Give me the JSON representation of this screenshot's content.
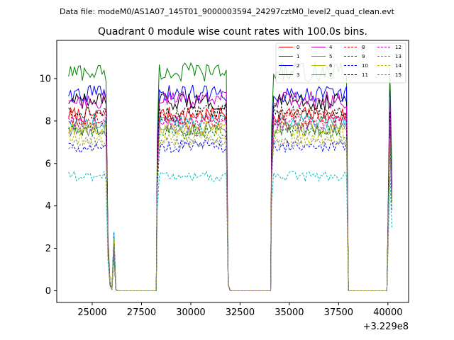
{
  "suptitle": "Data file: modeM0/AS1A07_145T01_9000003594_24297cztM0_level2_quad_clean.evt",
  "chart_data": {
    "type": "line",
    "title": "Quadrant 0 module wise count rates with 100.0s bins.",
    "xlabel": "",
    "ylabel": "",
    "x_offset_label": "+3.229e8",
    "xlim": [
      23200,
      41050
    ],
    "ylim": [
      -0.55,
      11.8
    ],
    "x_ticks": [
      25000,
      27500,
      30000,
      32500,
      35000,
      37500,
      40000
    ],
    "x_tick_labels": [
      "25000",
      "27500",
      "30000",
      "32500",
      "35000",
      "37500",
      "40000"
    ],
    "y_ticks": [
      0,
      2,
      4,
      6,
      8,
      10
    ],
    "y_tick_labels": [
      "0",
      "2",
      "4",
      "6",
      "8",
      "10"
    ],
    "legend_position": "top-right",
    "segments": [
      [
        23800,
        25700
      ],
      [
        28300,
        31800
      ],
      [
        34100,
        37900
      ],
      [
        40000,
        40200
      ]
    ],
    "series": [
      {
        "name": "0",
        "color": "#ff0000",
        "dash": "solid",
        "level": 8.3
      },
      {
        "name": "1",
        "color": "#008000",
        "dash": "solid",
        "level": 10.3
      },
      {
        "name": "2",
        "color": "#0000ff",
        "dash": "solid",
        "level": 9.3
      },
      {
        "name": "3",
        "color": "#000000",
        "dash": "solid",
        "level": 8.9
      },
      {
        "name": "4",
        "color": "#cc00cc",
        "dash": "solid",
        "level": 9.0
      },
      {
        "name": "5",
        "color": "#00bfbf",
        "dash": "solid",
        "level": 8.0
      },
      {
        "name": "6",
        "color": "#bfbf00",
        "dash": "solid",
        "level": 7.7
      },
      {
        "name": "7",
        "color": "#808080",
        "dash": "solid",
        "level": 7.6
      },
      {
        "name": "8",
        "color": "#ff0000",
        "dash": "dashed",
        "level": 8.1
      },
      {
        "name": "9",
        "color": "#008000",
        "dash": "dashed",
        "level": 7.5
      },
      {
        "name": "10",
        "color": "#0000ff",
        "dash": "dashed",
        "level": 6.8
      },
      {
        "name": "11",
        "color": "#000000",
        "dash": "dashed",
        "level": 8.4
      },
      {
        "name": "12",
        "color": "#cc00cc",
        "dash": "dashed",
        "level": 7.9
      },
      {
        "name": "13",
        "color": "#00bfbf",
        "dash": "dashed",
        "level": 5.4
      },
      {
        "name": "14",
        "color": "#bfbf00",
        "dash": "dashed",
        "level": 7.2
      },
      {
        "name": "15",
        "color": "#808080",
        "dash": "dashed",
        "level": 7.0
      }
    ]
  }
}
